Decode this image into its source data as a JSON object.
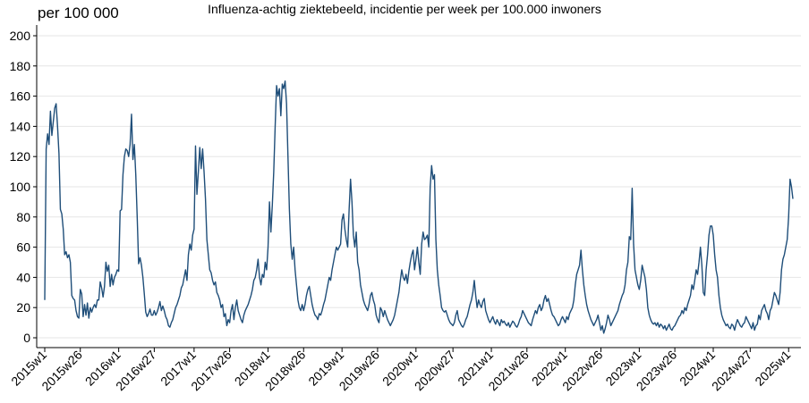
{
  "chart_data": {
    "type": "line",
    "title": "Influenza-achtig ziektebeeld, incidentie per week per 100.000 inwoners",
    "ylabel": "per 100 000",
    "xlabel": "",
    "ylim": [
      0,
      205
    ],
    "yticks": [
      0,
      20,
      40,
      60,
      80,
      100,
      120,
      140,
      160,
      180,
      200
    ],
    "grid": true,
    "x_tick_labels": [
      "2015w1",
      "2015w26",
      "2016w1",
      "2016w27",
      "2017w1",
      "2017w26",
      "2018w1",
      "2018w26",
      "2019w1",
      "2019w26",
      "2020w1",
      "2020w27",
      "2021w1",
      "2021w26",
      "2022w1",
      "2022w26",
      "2023w1",
      "2023w26",
      "2024w1",
      "2024w27",
      "2025w1"
    ],
    "x_tick_index": [
      0,
      25,
      52,
      77,
      105,
      130,
      157,
      182,
      209,
      234,
      261,
      287,
      314,
      339,
      366,
      391,
      418,
      443,
      470,
      496,
      523
    ],
    "line_color": "#1f4e79",
    "series": [
      {
        "values": [
          25,
          125,
          135,
          128,
          150,
          134,
          143,
          152,
          155,
          140,
          122,
          85,
          82,
          72,
          55,
          57,
          53,
          55,
          50,
          28,
          26,
          25,
          18,
          14,
          13,
          32,
          29,
          14,
          22,
          15,
          23,
          13,
          20,
          17,
          20,
          22,
          20,
          25,
          25,
          37,
          33,
          27,
          34,
          50,
          44,
          48,
          34,
          42,
          35,
          40,
          42,
          45,
          44,
          84,
          85,
          108,
          120,
          125,
          124,
          120,
          128,
          148,
          118,
          128,
          108,
          80,
          49,
          53,
          48,
          40,
          29,
          17,
          14,
          16,
          19,
          15,
          15,
          18,
          15,
          17,
          20,
          24,
          18,
          21,
          18,
          14,
          12,
          8,
          7,
          10,
          12,
          16,
          20,
          22,
          25,
          28,
          33,
          35,
          40,
          45,
          38,
          55,
          62,
          58,
          68,
          72,
          127,
          95,
          110,
          126,
          112,
          125,
          110,
          92,
          65,
          55,
          45,
          43,
          38,
          35,
          37,
          30,
          28,
          25,
          20,
          22,
          14,
          16,
          8,
          12,
          10,
          18,
          22,
          12,
          20,
          25,
          18,
          15,
          12,
          10,
          15,
          18,
          20,
          22,
          25,
          28,
          32,
          38,
          40,
          45,
          52,
          40,
          35,
          42,
          40,
          50,
          45,
          60,
          90,
          70,
          88,
          110,
          140,
          167,
          160,
          165,
          147,
          168,
          165,
          170,
          155,
          120,
          85,
          62,
          52,
          60,
          45,
          35,
          25,
          20,
          18,
          22,
          18,
          22,
          28,
          32,
          34,
          28,
          22,
          18,
          15,
          14,
          12,
          16,
          15,
          18,
          22,
          25,
          30,
          35,
          40,
          38,
          45,
          50,
          55,
          60,
          58,
          60,
          62,
          78,
          82,
          72,
          65,
          60,
          85,
          105,
          90,
          68,
          60,
          70,
          50,
          45,
          35,
          30,
          25,
          22,
          20,
          18,
          22,
          28,
          30,
          25,
          22,
          15,
          12,
          10,
          20,
          18,
          14,
          18,
          15,
          12,
          10,
          8,
          10,
          12,
          15,
          20,
          25,
          30,
          38,
          45,
          40,
          38,
          42,
          36,
          44,
          50,
          55,
          58,
          45,
          52,
          60,
          50,
          42,
          62,
          70,
          65,
          66,
          68,
          60,
          100,
          114,
          105,
          108,
          65,
          45,
          35,
          28,
          20,
          18,
          17,
          18,
          15,
          12,
          10,
          9,
          8,
          10,
          15,
          18,
          12,
          10,
          8,
          7,
          9,
          12,
          14,
          18,
          22,
          25,
          30,
          38,
          28,
          20,
          25,
          22,
          20,
          24,
          26,
          18,
          15,
          12,
          10,
          12,
          14,
          11,
          9,
          12,
          10,
          8,
          12,
          10,
          11,
          9,
          8,
          10,
          7,
          9,
          11,
          10,
          8,
          7,
          9,
          12,
          14,
          18,
          16,
          14,
          12,
          10,
          9,
          8,
          12,
          15,
          18,
          16,
          20,
          22,
          18,
          20,
          25,
          28,
          24,
          26,
          22,
          18,
          15,
          14,
          12,
          10,
          8,
          9,
          12,
          14,
          12,
          10,
          14,
          12,
          16,
          18,
          20,
          25,
          35,
          42,
          45,
          48,
          58,
          45,
          35,
          28,
          22,
          18,
          15,
          12,
          10,
          8,
          10,
          12,
          15,
          10,
          5,
          8,
          3,
          6,
          10,
          15,
          12,
          8,
          10,
          12,
          14,
          16,
          18,
          22,
          25,
          28,
          30,
          35,
          45,
          50,
          67,
          65,
          99,
          62,
          45,
          40,
          35,
          32,
          38,
          48,
          44,
          40,
          32,
          20,
          15,
          12,
          10,
          9,
          10,
          8,
          10,
          7,
          9,
          8,
          6,
          8,
          5,
          7,
          9,
          6,
          5,
          7,
          8,
          10,
          12,
          14,
          15,
          18,
          16,
          20,
          18,
          22,
          25,
          28,
          35,
          32,
          38,
          45,
          42,
          50,
          60,
          48,
          30,
          28,
          45,
          55,
          68,
          74,
          74,
          68,
          55,
          45,
          40,
          28,
          20,
          15,
          12,
          10,
          8,
          9,
          7,
          6,
          9,
          8,
          5,
          9,
          12,
          10,
          8,
          7,
          9,
          10,
          14,
          12,
          10,
          8,
          6,
          10,
          5,
          8,
          9,
          15,
          12,
          18,
          20,
          22,
          18,
          16,
          12,
          18,
          20,
          25,
          30,
          28,
          25,
          22,
          30,
          45,
          52,
          55,
          60,
          65,
          80,
          105,
          100,
          92
        ]
      }
    ]
  }
}
